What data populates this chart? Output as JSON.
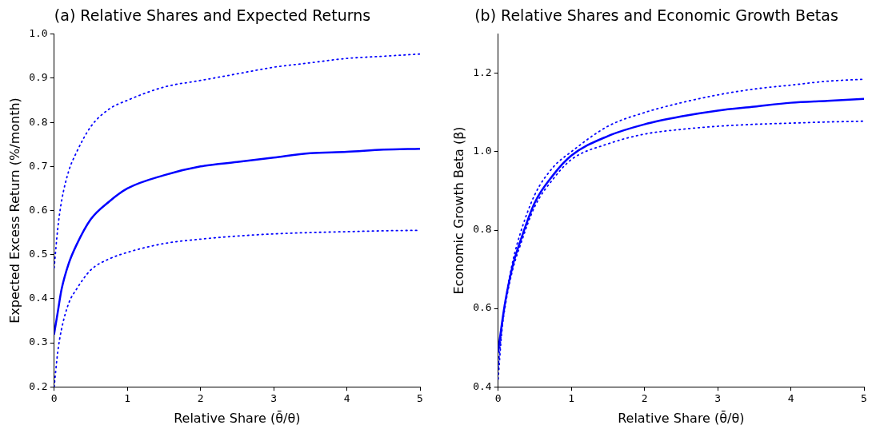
{
  "chart_data": [
    {
      "type": "line",
      "title": "(a) Relative Shares and Expected Returns",
      "xlabel": "Relative Share (θ̄/θ)",
      "ylabel": "Expected Excess Return (%/month)",
      "x": [
        0,
        0.05,
        0.1,
        0.2,
        0.3,
        0.5,
        0.75,
        1,
        1.5,
        2,
        2.5,
        3,
        3.5,
        4,
        4.5,
        5
      ],
      "xlim": [
        0,
        5
      ],
      "xticks": [
        0,
        1,
        2,
        3,
        4,
        5
      ],
      "ylim": [
        0.2,
        1.0
      ],
      "yticks": [
        {
          "value": 0.2,
          "label": "0.2"
        },
        {
          "value": 0.3,
          "label": "0.3"
        },
        {
          "value": 0.4,
          "label": "0.4"
        },
        {
          "value": 0.5,
          "label": "0.5"
        },
        {
          "value": 0.6,
          "label": "0.6"
        },
        {
          "value": 0.7,
          "label": "0.7"
        },
        {
          "value": 0.8,
          "label": "0.8"
        },
        {
          "value": 0.9,
          "label": "0.9"
        },
        {
          "value": 1.0,
          "label": "1.0"
        }
      ],
      "grid": false,
      "legend": false,
      "marker": "none",
      "series": [
        {
          "color": "#0000ff",
          "line_style": "solid",
          "values": [
            0.32,
            0.37,
            0.42,
            0.48,
            0.52,
            0.58,
            0.62,
            0.65,
            0.68,
            0.7,
            0.71,
            0.72,
            0.73,
            0.733,
            0.738,
            0.74
          ]
        },
        {
          "color": "#0000ff",
          "line_style": "dotted",
          "values": [
            0.47,
            0.56,
            0.62,
            0.69,
            0.73,
            0.79,
            0.83,
            0.85,
            0.88,
            0.895,
            0.91,
            0.925,
            0.935,
            0.945,
            0.95,
            0.955
          ]
        },
        {
          "color": "#0000ff",
          "line_style": "dotted",
          "values": [
            0.2,
            0.28,
            0.33,
            0.39,
            0.42,
            0.465,
            0.49,
            0.505,
            0.525,
            0.535,
            0.542,
            0.547,
            0.55,
            0.552,
            0.554,
            0.555
          ]
        }
      ]
    },
    {
      "type": "line",
      "title": "(b) Relative Shares and Economic Growth Betas",
      "xlabel": "Relative Share (θ̄/θ)",
      "ylabel": "Economic Growth Beta (β)",
      "x": [
        0,
        0.05,
        0.1,
        0.2,
        0.3,
        0.5,
        0.75,
        1,
        1.5,
        2,
        2.5,
        3,
        3.5,
        4,
        4.5,
        5
      ],
      "xlim": [
        0,
        5
      ],
      "xticks": [
        0,
        1,
        2,
        3,
        4,
        5
      ],
      "ylim": [
        0.4,
        1.3
      ],
      "yticks": [
        {
          "value": 0.4,
          "label": "0.4"
        },
        {
          "value": 0.6,
          "label": "0.6"
        },
        {
          "value": 0.8,
          "label": "0.8"
        },
        {
          "value": 1.0,
          "label": "1.0"
        },
        {
          "value": 1.2,
          "label": "1.2"
        }
      ],
      "grid": false,
      "legend": false,
      "marker": "none",
      "series": [
        {
          "color": "#0000ff",
          "line_style": "solid",
          "values": [
            0.49,
            0.56,
            0.62,
            0.71,
            0.77,
            0.87,
            0.94,
            0.99,
            1.04,
            1.07,
            1.09,
            1.105,
            1.115,
            1.125,
            1.13,
            1.135
          ]
        },
        {
          "color": "#0000ff",
          "line_style": "dotted",
          "values": [
            0.45,
            0.55,
            0.62,
            0.72,
            0.79,
            0.89,
            0.96,
            1.0,
            1.065,
            1.1,
            1.125,
            1.145,
            1.16,
            1.17,
            1.18,
            1.185
          ]
        },
        {
          "color": "#0000ff",
          "line_style": "dotted",
          "values": [
            0.42,
            0.54,
            0.61,
            0.7,
            0.76,
            0.86,
            0.93,
            0.98,
            1.02,
            1.045,
            1.057,
            1.065,
            1.07,
            1.073,
            1.076,
            1.078
          ]
        }
      ]
    }
  ]
}
